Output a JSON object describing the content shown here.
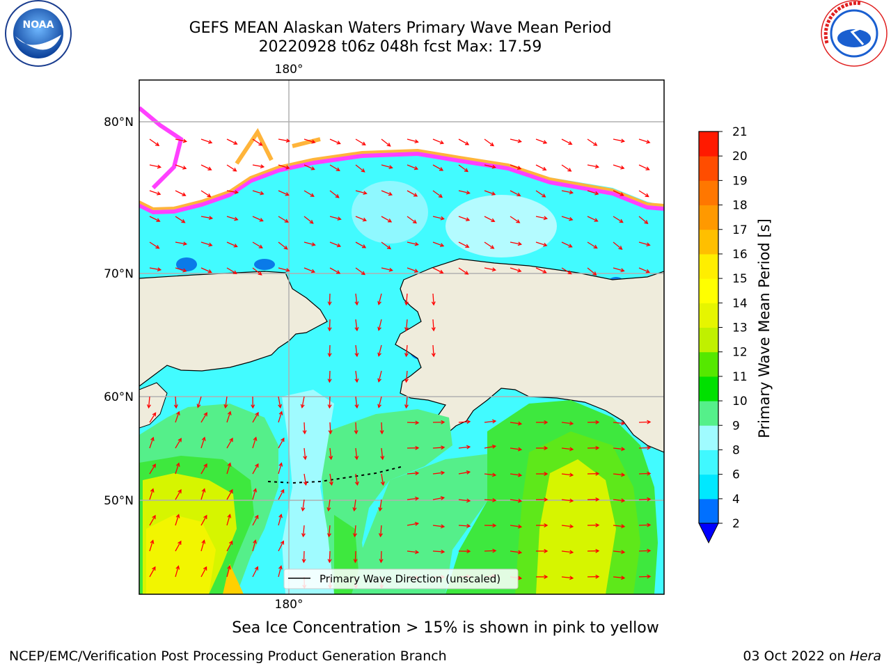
{
  "header": {
    "title_line1": "GEFS MEAN Alaskan Waters Primary Wave Mean Period",
    "title_line2": "20220928 t06z 048h fcst   Max: 17.59"
  },
  "logos": {
    "left": "NOAA",
    "right": "NATIONAL WEATHER SERVICE"
  },
  "map": {
    "lat_labels": [
      "80°N",
      "70°N",
      "60°N",
      "50°N"
    ],
    "lon_label_top": "180°",
    "lon_label_bottom": "180°",
    "legend_label": "Primary Wave Direction (unscaled)",
    "colors": {
      "land": "#efecdc",
      "arrow": "#ff0000",
      "ice": "#ff40ff"
    }
  },
  "colorbar": {
    "label": "Primary Wave Mean Period [s]",
    "ticks": [
      "2",
      "4",
      "6",
      "8",
      "9",
      "10",
      "11",
      "12",
      "13",
      "14",
      "15",
      "16",
      "17",
      "18",
      "19",
      "20",
      "21"
    ],
    "colors": [
      "#0070ff",
      "#00e8ff",
      "#40f8ff",
      "#a0fbff",
      "#55f08a",
      "#00e000",
      "#55e800",
      "#c0f000",
      "#e6f500",
      "#ffff00",
      "#ffee00",
      "#ffbf00",
      "#ff9900",
      "#ff7700",
      "#ff4d00",
      "#ff1a00"
    ],
    "under_color": "#0000ff"
  },
  "caption": "Sea Ice Concentration > 15% is shown in pink to yellow",
  "footer": {
    "left": "NCEP/EMC/Verification Post Processing Product Generation Branch",
    "right_prefix": "03 Oct 2022 on ",
    "right_host": "Hera"
  }
}
